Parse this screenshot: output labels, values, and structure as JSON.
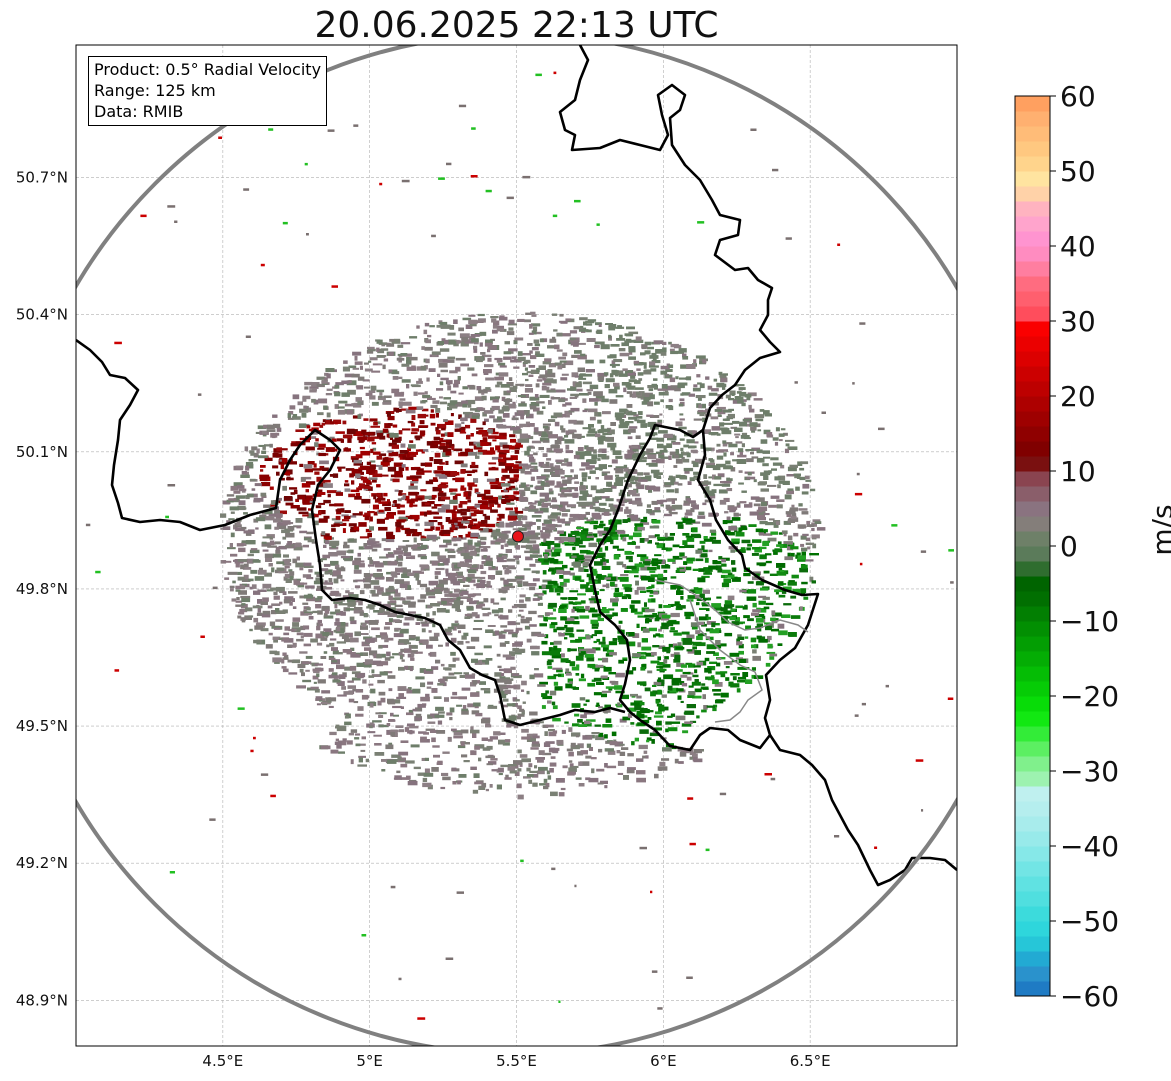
{
  "title": "20.06.2025 22:13 UTC",
  "info": {
    "product": "Product: 0.5° Radial Velocity",
    "range": "Range: 125 km",
    "data": "Data: RMIB"
  },
  "map": {
    "lon_range": [
      4.0,
      7.0
    ],
    "lat_range": [
      48.8,
      50.99
    ],
    "lon_ticks": [
      {
        "value": 4.5,
        "label": "4.5°E"
      },
      {
        "value": 5.0,
        "label": "5°E"
      },
      {
        "value": 5.5,
        "label": "5.5°E"
      },
      {
        "value": 6.0,
        "label": "6°E"
      },
      {
        "value": 6.5,
        "label": "6.5°E"
      }
    ],
    "lat_ticks": [
      {
        "value": 50.7,
        "label": "50.7°N"
      },
      {
        "value": 50.4,
        "label": "50.4°N"
      },
      {
        "value": 50.1,
        "label": "50.1°N"
      },
      {
        "value": 49.8,
        "label": "49.8°N"
      },
      {
        "value": 49.5,
        "label": "49.5°N"
      },
      {
        "value": 49.2,
        "label": "49.2°N"
      },
      {
        "value": 48.9,
        "label": "48.9°N"
      }
    ],
    "radar_site": {
      "lon": 5.505,
      "lat": 49.915
    },
    "range_km": 125,
    "colors": {
      "range_ring": "#808080",
      "border": "#000000",
      "gridline": "#b0b0b0",
      "site_marker": "#e8141a",
      "inbound_green": "#0a7a0a",
      "outbound_red": "#8a0000",
      "near_zero": "#8a7780"
    }
  },
  "colorbar": {
    "label": "m/s",
    "min": -60,
    "max": 60,
    "ticks": [
      {
        "value": 60,
        "label": "60"
      },
      {
        "value": 50,
        "label": "50"
      },
      {
        "value": 40,
        "label": "40"
      },
      {
        "value": 30,
        "label": "30"
      },
      {
        "value": 20,
        "label": "20"
      },
      {
        "value": 10,
        "label": "10"
      },
      {
        "value": 0,
        "label": "0"
      },
      {
        "value": -10,
        "label": "−10"
      },
      {
        "value": -20,
        "label": "−20"
      },
      {
        "value": -30,
        "label": "−30"
      },
      {
        "value": -40,
        "label": "−40"
      },
      {
        "value": -50,
        "label": "−50"
      },
      {
        "value": -60,
        "label": "−60"
      }
    ],
    "stops": [
      {
        "value": -60,
        "color": "#1f7bc4"
      },
      {
        "value": -58,
        "color": "#2a92cc"
      },
      {
        "value": -56,
        "color": "#22aad3"
      },
      {
        "value": -54,
        "color": "#26c6d8"
      },
      {
        "value": -52,
        "color": "#2ed6dc"
      },
      {
        "value": -50,
        "color": "#3cdbdc"
      },
      {
        "value": -48,
        "color": "#50dfdf"
      },
      {
        "value": -46,
        "color": "#60e2e2"
      },
      {
        "value": -44,
        "color": "#72e5e5"
      },
      {
        "value": -42,
        "color": "#86e8e8"
      },
      {
        "value": -40,
        "color": "#98eaea"
      },
      {
        "value": -38,
        "color": "#a8ecec"
      },
      {
        "value": -36,
        "color": "#b5eeee"
      },
      {
        "value": -34,
        "color": "#bff0ef"
      },
      {
        "value": -32,
        "color": "#9df2b0"
      },
      {
        "value": -30,
        "color": "#80f08c"
      },
      {
        "value": -28,
        "color": "#5cef62"
      },
      {
        "value": -26,
        "color": "#33ec38"
      },
      {
        "value": -24,
        "color": "#12e812"
      },
      {
        "value": -22,
        "color": "#08dc08"
      },
      {
        "value": -20,
        "color": "#06cc06"
      },
      {
        "value": -18,
        "color": "#05bd05"
      },
      {
        "value": -16,
        "color": "#04ad04"
      },
      {
        "value": -14,
        "color": "#039e03"
      },
      {
        "value": -12,
        "color": "#028f02"
      },
      {
        "value": -10,
        "color": "#027f02"
      },
      {
        "value": -8,
        "color": "#016f01"
      },
      {
        "value": -6,
        "color": "#006400"
      },
      {
        "value": -4,
        "color": "#2f6d2f"
      },
      {
        "value": -2,
        "color": "#5b7b5a"
      },
      {
        "value": 0,
        "color": "#6e8068"
      },
      {
        "value": 2,
        "color": "#847e7a"
      },
      {
        "value": 4,
        "color": "#8a7380"
      },
      {
        "value": 6,
        "color": "#8a5e6a"
      },
      {
        "value": 8,
        "color": "#8a4450"
      },
      {
        "value": 10,
        "color": "#7a1010"
      },
      {
        "value": 12,
        "color": "#800000"
      },
      {
        "value": 14,
        "color": "#8f0000"
      },
      {
        "value": 16,
        "color": "#9e0000"
      },
      {
        "value": 18,
        "color": "#ad0000"
      },
      {
        "value": 20,
        "color": "#bd0000"
      },
      {
        "value": 22,
        "color": "#cc0000"
      },
      {
        "value": 24,
        "color": "#dc0000"
      },
      {
        "value": 26,
        "color": "#eb0000"
      },
      {
        "value": 28,
        "color": "#fa0000"
      },
      {
        "value": 30,
        "color": "#ff4d5c"
      },
      {
        "value": 32,
        "color": "#ff5f6e"
      },
      {
        "value": 34,
        "color": "#ff6c80"
      },
      {
        "value": 36,
        "color": "#ff7ea0"
      },
      {
        "value": 38,
        "color": "#ff8cc0"
      },
      {
        "value": 40,
        "color": "#ff94d0"
      },
      {
        "value": 42,
        "color": "#ffa4cc"
      },
      {
        "value": 44,
        "color": "#ffb3c0"
      },
      {
        "value": 46,
        "color": "#ffd2a8"
      },
      {
        "value": 48,
        "color": "#ffe4a0"
      },
      {
        "value": 50,
        "color": "#ffd48c"
      },
      {
        "value": 52,
        "color": "#ffc880"
      },
      {
        "value": 54,
        "color": "#ffbc78"
      },
      {
        "value": 56,
        "color": "#ffb070"
      },
      {
        "value": 58,
        "color": "#ffa060"
      }
    ]
  }
}
